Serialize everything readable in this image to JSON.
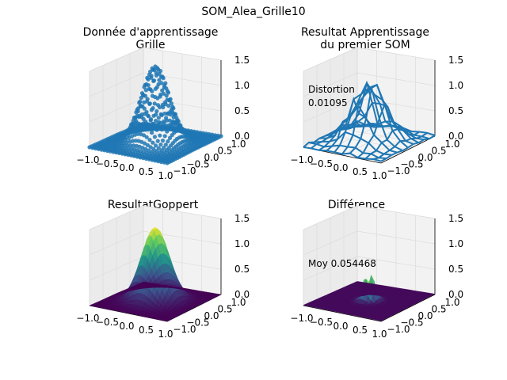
{
  "figure": {
    "suptitle": "SOM_Alea_Grille10"
  },
  "chart_data": [
    {
      "type": "surface3d",
      "render": "scatter",
      "title_lines": [
        "Donnée d'apprentissage",
        "Grille"
      ],
      "color": "#1f77b4",
      "xlim": [
        -1.0,
        1.0
      ],
      "ylim": [
        -1.0,
        1.0
      ],
      "zlim": [
        0.0,
        1.5
      ],
      "x_ticks": [
        "−1.0",
        "−0.5",
        "0.0",
        "0.5",
        "1.0"
      ],
      "y_ticks": [
        "−1.0",
        "−0.5",
        "0.0",
        "0.5",
        "1.0"
      ],
      "z_ticks": [
        "0.0",
        "0.5",
        "1.0",
        "1.5"
      ],
      "peak": 1.5,
      "sigma": 0.3,
      "annotation": []
    },
    {
      "type": "surface3d",
      "render": "wireframe",
      "title_lines": [
        "Resultat Apprentissage",
        "du premier SOM"
      ],
      "color": "#1f77b4",
      "xlim": [
        -1.0,
        1.0
      ],
      "ylim": [
        -1.0,
        1.0
      ],
      "zlim": [
        0.0,
        1.5
      ],
      "x_ticks": [
        "−1.0",
        "−0.5",
        "0.0",
        "0.5",
        "1.0"
      ],
      "y_ticks": [
        "−1.0",
        "−0.5",
        "0.0",
        "0.5",
        "1.0"
      ],
      "z_ticks": [
        "0.0",
        "0.5",
        "1.0",
        "1.5"
      ],
      "peak": 1.2,
      "sigma": 0.35,
      "annotation": [
        "Distortion",
        "0.01095"
      ]
    },
    {
      "type": "surface3d",
      "render": "viridis",
      "title_lines": [
        "ResultatGoppert"
      ],
      "xlim": [
        -1.0,
        1.0
      ],
      "ylim": [
        -1.0,
        1.0
      ],
      "zlim": [
        0.0,
        1.5
      ],
      "x_ticks": [
        "−1.0",
        "−0.5",
        "0.0",
        "0.5",
        "1.0"
      ],
      "y_ticks": [
        "−1.0",
        "−0.5",
        "0.0",
        "0.5",
        "1.0"
      ],
      "z_ticks": [
        "0.0",
        "0.5",
        "1.0",
        "1.5"
      ],
      "peak": 1.45,
      "sigma": 0.3,
      "annotation": []
    },
    {
      "type": "surface3d",
      "render": "viridis",
      "title_lines": [
        "Différence"
      ],
      "xlim": [
        -1.0,
        1.0
      ],
      "ylim": [
        -1.0,
        1.0
      ],
      "zlim": [
        0.0,
        1.5
      ],
      "x_ticks": [
        "−1.0",
        "−0.5",
        "0.0",
        "0.5",
        "1.0"
      ],
      "y_ticks": [
        "−1.0",
        "−0.5",
        "0.0",
        "0.5",
        "1.0"
      ],
      "z_ticks": [
        "0.0",
        "0.5",
        "1.0",
        "1.5"
      ],
      "peak": 0.45,
      "sigma": 0.12,
      "annotation": [
        "Moy 0.054468"
      ]
    }
  ]
}
